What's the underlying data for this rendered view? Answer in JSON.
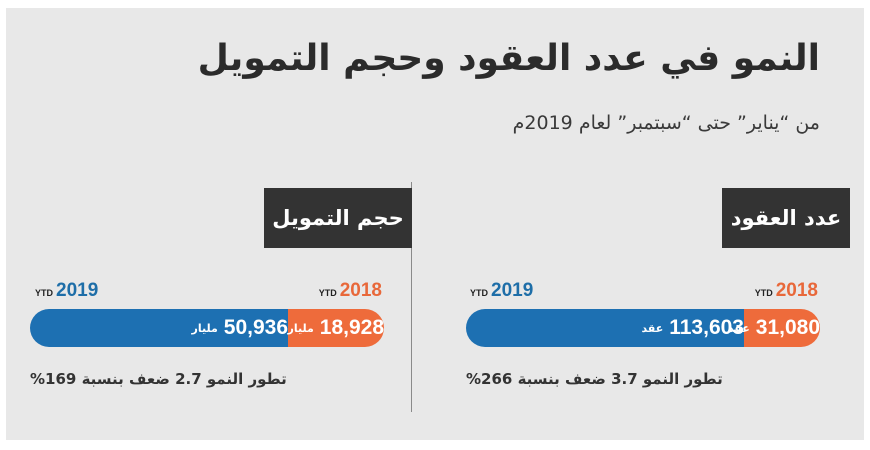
{
  "title": "النمو في عدد العقود وحجم التمويل",
  "subtitle": "من “يناير” حتى “سبتمبر” لعام 2019م",
  "colors": {
    "y2018": "#ee6b3b",
    "y2019": "#1d70b2",
    "background": "#e8e8e8",
    "tab": "#333333"
  },
  "chart_data": [
    {
      "type": "bar",
      "title": "عدد العقود",
      "series": [
        {
          "name": "2018",
          "suffix": "YTD",
          "value": 31080,
          "label": "31,080",
          "unit": "عقد"
        },
        {
          "name": "2019",
          "suffix": "YTD",
          "value": 113603,
          "label": "113,603",
          "unit": "عقد"
        }
      ],
      "note": "تطور النمو 3.7 ضعف بنسبة 266%"
    },
    {
      "type": "bar",
      "title": "حجم التمويل",
      "series": [
        {
          "name": "2018",
          "suffix": "YTD",
          "value": 18928,
          "label": "18,928",
          "unit": "مليار"
        },
        {
          "name": "2019",
          "suffix": "YTD",
          "value": 50936,
          "label": "50,936",
          "unit": "مليار"
        }
      ],
      "note": "تطور النمو 2.7 ضعف بنسبة 169%"
    }
  ]
}
